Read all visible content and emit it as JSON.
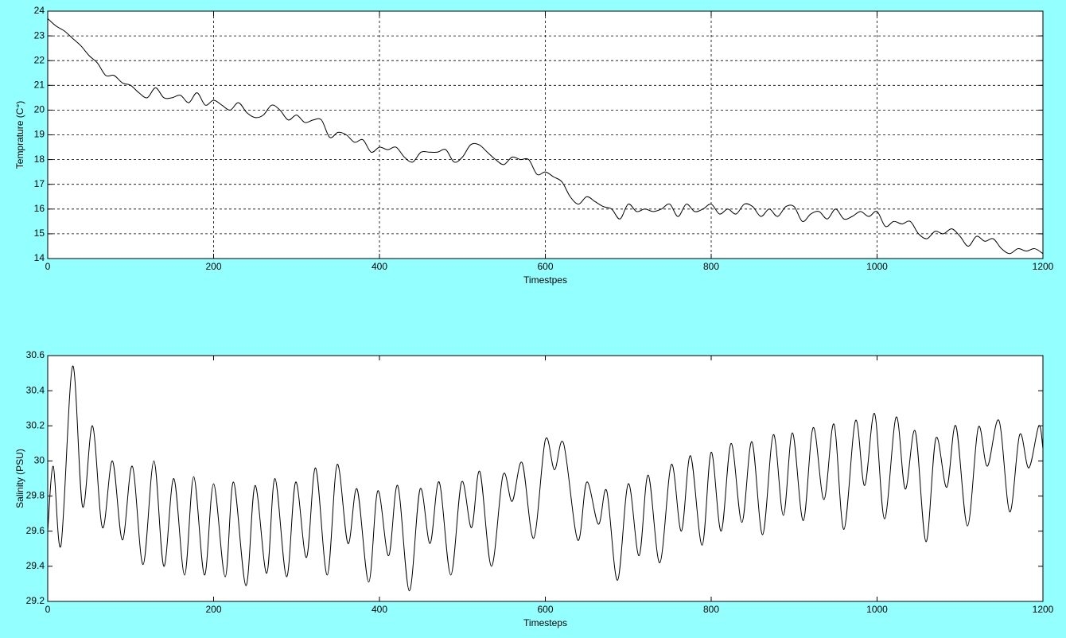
{
  "chart_data": [
    {
      "type": "line",
      "xlabel": "Timestpes",
      "ylabel": "Temprature (C°)",
      "x": [
        0,
        10,
        20,
        30,
        40,
        50,
        60,
        70,
        80,
        90,
        100,
        110,
        120,
        130,
        140,
        150,
        160,
        170,
        180,
        190,
        200,
        210,
        220,
        230,
        240,
        250,
        260,
        270,
        280,
        290,
        300,
        310,
        320,
        330,
        340,
        350,
        360,
        370,
        380,
        390,
        400,
        410,
        420,
        430,
        440,
        450,
        460,
        470,
        480,
        490,
        500,
        510,
        520,
        530,
        540,
        550,
        560,
        570,
        580,
        590,
        600,
        610,
        620,
        630,
        640,
        650,
        660,
        670,
        680,
        690,
        700,
        710,
        720,
        730,
        740,
        750,
        760,
        770,
        780,
        790,
        800,
        810,
        820,
        830,
        840,
        850,
        860,
        870,
        880,
        890,
        900,
        910,
        920,
        930,
        940,
        950,
        960,
        970,
        980,
        990,
        1000,
        1010,
        1020,
        1030,
        1040,
        1050,
        1060,
        1070,
        1080,
        1090,
        1100,
        1110,
        1120,
        1130,
        1140,
        1150,
        1160,
        1170,
        1180,
        1190,
        1200
      ],
      "series": [
        {
          "color": "#000000",
          "values": [
            23.7,
            23.4,
            23.2,
            22.9,
            22.6,
            22.2,
            21.9,
            21.4,
            21.4,
            21.1,
            21.0,
            20.7,
            20.5,
            20.9,
            20.5,
            20.5,
            20.6,
            20.3,
            20.7,
            20.2,
            20.4,
            20.2,
            20.0,
            20.3,
            19.9,
            19.7,
            19.8,
            20.2,
            20.0,
            19.6,
            19.8,
            19.5,
            19.6,
            19.6,
            18.9,
            19.1,
            19.0,
            18.7,
            18.8,
            18.3,
            18.5,
            18.4,
            18.5,
            18.1,
            17.9,
            18.3,
            18.3,
            18.3,
            18.4,
            17.9,
            18.1,
            18.6,
            18.6,
            18.3,
            18.0,
            17.8,
            18.1,
            18.0,
            18.0,
            17.4,
            17.5,
            17.3,
            17.1,
            16.5,
            16.2,
            16.5,
            16.3,
            16.1,
            16.0,
            15.6,
            16.2,
            15.9,
            16.0,
            15.9,
            16.0,
            16.2,
            15.7,
            16.2,
            15.9,
            16.0,
            16.2,
            15.8,
            16.0,
            15.8,
            16.2,
            16.1,
            15.7,
            16.0,
            15.7,
            16.1,
            16.1,
            15.5,
            15.8,
            15.9,
            15.6,
            16.0,
            15.6,
            15.7,
            15.9,
            15.7,
            15.9,
            15.3,
            15.5,
            15.4,
            15.5,
            15.0,
            14.8,
            15.1,
            15.0,
            15.2,
            14.9,
            14.5,
            14.9,
            14.7,
            14.8,
            14.4,
            14.2,
            14.4,
            14.3,
            14.4,
            14.2
          ]
        }
      ],
      "xlim": [
        0,
        1200
      ],
      "xticks": [
        0,
        200,
        400,
        600,
        800,
        1000,
        1200
      ],
      "ylim": [
        14,
        24
      ],
      "yticks": [
        14,
        15,
        16,
        17,
        18,
        19,
        20,
        21,
        22,
        23,
        24
      ],
      "grid": true
    },
    {
      "type": "line",
      "xlabel": "Timesteps",
      "ylabel": "Salinity (PSU)",
      "x": [
        0,
        6.7,
        16,
        30,
        42,
        54,
        66,
        78,
        90,
        102,
        115,
        128,
        140,
        152,
        165,
        176,
        189,
        200,
        214,
        224,
        239,
        250,
        264,
        274,
        288,
        299,
        312,
        323,
        337,
        349,
        362,
        373,
        387,
        398,
        411,
        422,
        436,
        449,
        461,
        472,
        486,
        499,
        511,
        521,
        535,
        549,
        560,
        572,
        586,
        600,
        611,
        622,
        639,
        650,
        664,
        674,
        687,
        700,
        713,
        724,
        738,
        752,
        764,
        775,
        789,
        800,
        812,
        824,
        837,
        849,
        862,
        875,
        887,
        898,
        911,
        923,
        936,
        948,
        960,
        974,
        985,
        997,
        1009,
        1023,
        1034,
        1046,
        1059,
        1071,
        1084,
        1095,
        1109,
        1122,
        1133,
        1147,
        1160,
        1172,
        1183,
        1195,
        1200
      ],
      "series": [
        {
          "color": "#000000",
          "values": [
            29.6,
            29.97,
            29.52,
            30.54,
            29.74,
            30.2,
            29.62,
            30.0,
            29.55,
            29.97,
            29.41,
            30.0,
            29.4,
            29.9,
            29.35,
            29.91,
            29.35,
            29.87,
            29.34,
            29.88,
            29.29,
            29.86,
            29.36,
            29.9,
            29.34,
            29.88,
            29.45,
            29.96,
            29.35,
            29.98,
            29.53,
            29.84,
            29.31,
            29.83,
            29.46,
            29.86,
            29.26,
            29.84,
            29.53,
            29.88,
            29.35,
            29.88,
            29.62,
            29.94,
            29.4,
            29.92,
            29.77,
            29.99,
            29.56,
            30.12,
            29.95,
            30.1,
            29.55,
            29.88,
            29.64,
            29.83,
            29.32,
            29.87,
            29.46,
            29.92,
            29.42,
            29.98,
            29.6,
            30.03,
            29.52,
            30.05,
            29.6,
            30.1,
            29.65,
            30.11,
            29.58,
            30.15,
            29.69,
            30.16,
            29.66,
            30.19,
            29.78,
            30.21,
            29.61,
            30.23,
            29.86,
            30.27,
            29.67,
            30.25,
            29.84,
            30.17,
            29.54,
            30.13,
            29.85,
            30.2,
            29.63,
            30.19,
            29.97,
            30.23,
            29.71,
            30.15,
            29.96,
            30.2,
            30.07
          ]
        }
      ],
      "xlim": [
        0,
        1200
      ],
      "xticks": [
        0,
        200,
        400,
        600,
        800,
        1000,
        1200
      ],
      "ylim": [
        29.2,
        30.6
      ],
      "yticks": [
        29.2,
        29.4,
        29.6,
        29.8,
        30,
        30.2,
        30.4,
        30.6
      ],
      "grid": false
    }
  ]
}
